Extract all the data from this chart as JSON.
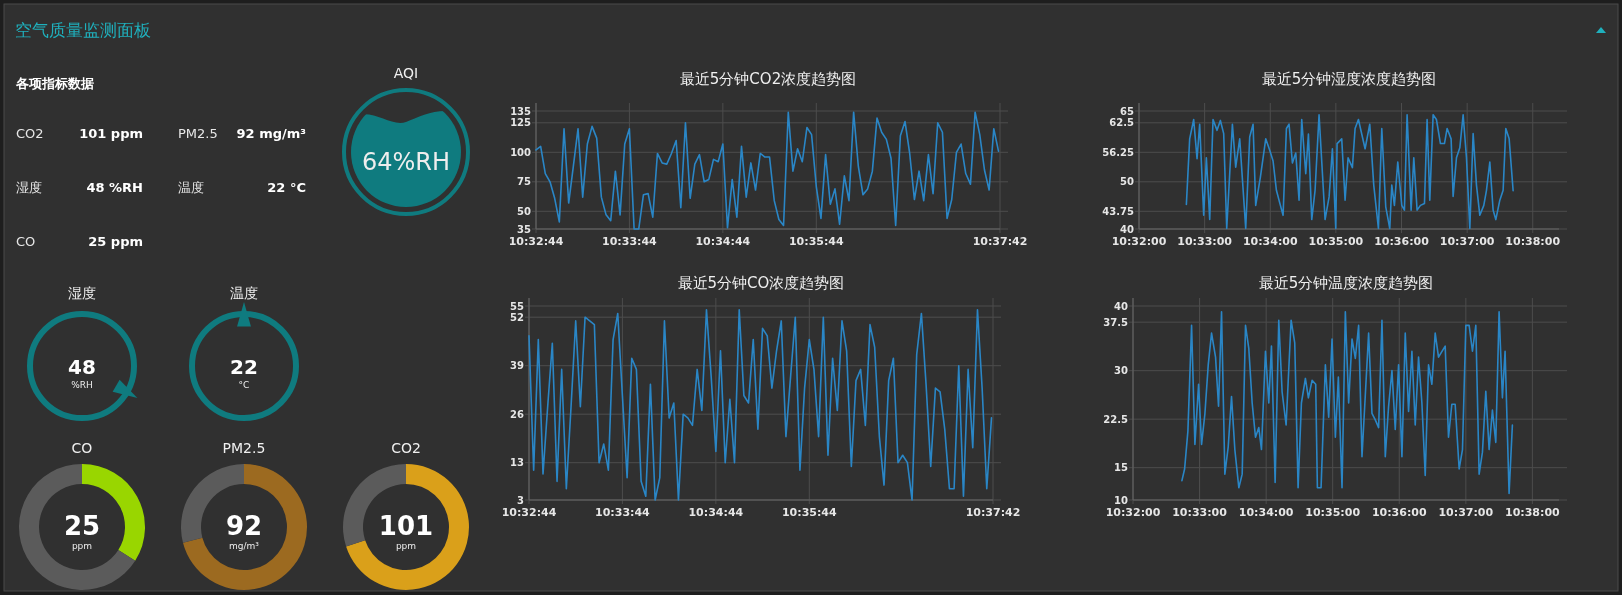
{
  "chart_data": [
    {
      "type": "other",
      "title": "空气质量监测面板",
      "subtitle": "各项指标数据",
      "annotations": [
        "CO2",
        "101 ppm",
        "PM2.5",
        "92 mg/m³",
        "湿度",
        "48 %RH",
        "温度",
        "22 °C",
        "CO",
        "25 ppm"
      ]
    },
    {
      "type": "other",
      "title": "AQI",
      "annotations": [
        "64%RH"
      ]
    },
    {
      "type": "line",
      "title": "最近5分钟CO2浓度趋势图",
      "color": "#2a86c6",
      "grid": true,
      "x": [
        10.54556,
        10.54639,
        10.54722,
        10.54806,
        10.54889,
        10.54972,
        10.55056,
        10.55139,
        10.55222,
        10.55306,
        10.55389,
        10.55472,
        10.55556,
        10.55639,
        10.55722,
        10.55806,
        10.55889,
        10.55972,
        10.56056,
        10.56139,
        10.56222,
        10.56306,
        10.56389,
        10.56472,
        10.56556,
        10.56639,
        10.56722,
        10.56806,
        10.56889,
        10.56972,
        10.57056,
        10.57139,
        10.57222,
        10.57306,
        10.57389,
        10.57472,
        10.57556,
        10.57639,
        10.57722,
        10.57806,
        10.57889,
        10.57972,
        10.58056,
        10.58139,
        10.58222,
        10.58306,
        10.58389,
        10.58472,
        10.58556,
        10.58639,
        10.58722,
        10.58806,
        10.58889,
        10.58972,
        10.59056,
        10.59139,
        10.59222,
        10.59306,
        10.59389,
        10.59472,
        10.59556,
        10.59639,
        10.59722,
        10.59806,
        10.59889,
        10.59972,
        10.60056,
        10.60139,
        10.60222,
        10.60306,
        10.60389,
        10.60472,
        10.60556,
        10.60639,
        10.60722,
        10.60806,
        10.60889,
        10.60972,
        10.61056,
        10.61139,
        10.61222,
        10.61306,
        10.61389,
        10.61472,
        10.61556,
        10.61639,
        10.61722,
        10.61806,
        10.61889,
        10.61972,
        10.62056,
        10.62139,
        10.62222,
        10.62306,
        10.62389,
        10.62472,
        10.62556,
        10.62639,
        10.62722,
        10.62806
      ],
      "values": [
        102,
        105,
        82,
        75,
        61,
        41,
        120,
        57,
        88,
        120,
        62,
        107,
        122,
        112,
        62,
        47,
        42,
        84,
        47,
        107,
        120,
        35,
        35,
        64,
        65,
        45,
        99,
        91,
        90,
        99,
        110,
        53,
        125,
        61,
        90,
        98,
        75,
        77,
        94,
        92,
        107,
        36,
        77,
        45,
        105,
        62,
        91,
        68,
        99,
        96,
        96,
        59,
        43,
        38,
        134,
        84,
        103,
        92,
        121,
        115,
        71,
        44,
        98,
        56,
        69,
        39,
        80,
        59,
        134,
        88,
        64,
        69,
        84,
        129,
        117,
        111,
        95,
        38,
        114,
        126,
        99,
        60,
        84,
        59,
        98,
        65,
        125,
        117,
        44,
        60,
        100,
        107,
        82,
        73,
        134,
        115,
        85,
        68,
        120,
        101
      ],
      "xlim": [
        10.54556,
        10.62833
      ],
      "xticks": [
        {
          "value": 10.54556,
          "label": "10:32:44"
        },
        {
          "value": 10.56222,
          "label": "10:33:44"
        },
        {
          "value": 10.57889,
          "label": "10:34:44"
        },
        {
          "value": 10.59556,
          "label": "10:35:44"
        },
        {
          "value": 10.62833,
          "label": "10:37:42"
        }
      ],
      "ylim": [
        35,
        135
      ],
      "yticks": [
        35,
        50,
        75,
        100,
        125,
        135
      ]
    },
    {
      "type": "line",
      "title": "最近5分钟湿度浓度趋势图",
      "color": "#2a86c6",
      "grid": true,
      "x": [
        10.54536,
        10.5462,
        10.54722,
        10.54807,
        10.54874,
        10.54976,
        10.55044,
        10.55129,
        10.55213,
        10.55315,
        10.554,
        10.55484,
        10.55561,
        10.55705,
        10.55789,
        10.55891,
        10.56043,
        10.56145,
        10.5623,
        10.56297,
        10.56416,
        10.56552,
        10.56653,
        10.56738,
        10.56823,
        10.56924,
        10.56992,
        10.57077,
        10.57144,
        10.57229,
        10.57314,
        10.57398,
        10.57466,
        10.57568,
        10.57636,
        10.5772,
        10.57805,
        10.57906,
        10.58059,
        10.58161,
        10.58245,
        10.5833,
        10.58364,
        10.58482,
        10.58567,
        10.58643,
        10.58753,
        10.58821,
        10.58906,
        10.59075,
        10.59194,
        10.59295,
        10.59414,
        10.59499,
        10.596,
        10.59702,
        10.59753,
        10.5982,
        10.59905,
        10.60007,
        10.60074,
        10.60142,
        10.60244,
        10.60312,
        10.60396,
        10.60481,
        10.60583,
        10.6065,
        10.60718,
        10.60803,
        10.60887,
        10.60989,
        10.61091,
        10.61159,
        10.6126,
        10.61311,
        10.61396,
        10.61481,
        10.61565,
        10.6165,
        10.61735,
        10.61819,
        10.61904,
        10.61989,
        10.6209,
        10.62158,
        10.62243,
        10.62327,
        10.62395,
        10.62497,
        10.62581,
        10.62649,
        10.62734,
        10.62835
      ],
      "values": [
        45.2,
        59.1,
        63.2,
        54.9,
        62.2,
        42.9,
        55.1,
        42.0,
        63.2,
        60.9,
        63.0,
        60.2,
        40.1,
        62.2,
        53.1,
        59.1,
        40.1,
        59.5,
        62.2,
        45.0,
        51.0,
        59.1,
        56.7,
        54.4,
        48.2,
        45.0,
        42.9,
        61.3,
        62.2,
        54.0,
        56.1,
        46.1,
        63.2,
        51.7,
        60.1,
        42.0,
        48.2,
        64.2,
        42.0,
        46.8,
        57.0,
        40.1,
        58.1,
        59.1,
        46.1,
        55.1,
        53.0,
        61.3,
        63.2,
        57.0,
        62.2,
        49.3,
        40.1,
        61.3,
        44.7,
        40.1,
        49.3,
        45.0,
        54.2,
        45.0,
        44.0,
        64.2,
        44.0,
        55.1,
        44.0,
        45.0,
        45.4,
        63.2,
        46.1,
        64.2,
        63.2,
        58.1,
        58.1,
        61.3,
        59.1,
        46.9,
        55.1,
        57.2,
        64.2,
        55.1,
        40.1,
        60.2,
        49.3,
        42.9,
        45.0,
        48.2,
        54.2,
        44.0,
        42.0,
        46.1,
        48.2,
        61.3,
        59.1,
        48.1
      ],
      "xlim": [
        10.53333,
        10.64
      ],
      "xticks": [
        {
          "value": 10.53333,
          "label": "10:32:00"
        },
        {
          "value": 10.55,
          "label": "10:33:00"
        },
        {
          "value": 10.56667,
          "label": "10:34:00"
        },
        {
          "value": 10.58333,
          "label": "10:35:00"
        },
        {
          "value": 10.6,
          "label": "10:36:00"
        },
        {
          "value": 10.61667,
          "label": "10:37:00"
        },
        {
          "value": 10.63333,
          "label": "10:38:00"
        }
      ],
      "ylim": [
        40,
        65
      ],
      "yticks": [
        40,
        43.75,
        50,
        56.25,
        62.5,
        65
      ]
    },
    {
      "type": "other",
      "title": "湿度",
      "annotations": [
        "48",
        "%RH"
      ]
    },
    {
      "type": "other",
      "title": "温度",
      "annotations": [
        "22",
        "°C"
      ]
    },
    {
      "type": "line",
      "title": "最近5分钟CO浓度趋势图",
      "color": "#2a86c6",
      "grid": true,
      "x": [
        10.54556,
        10.54639,
        10.54722,
        10.54806,
        10.54889,
        10.54972,
        10.55056,
        10.55139,
        10.55222,
        10.55306,
        10.55389,
        10.55472,
        10.55556,
        10.55639,
        10.55722,
        10.55806,
        10.55889,
        10.55972,
        10.56056,
        10.56139,
        10.56222,
        10.56306,
        10.56389,
        10.56472,
        10.56556,
        10.56639,
        10.56722,
        10.56806,
        10.56889,
        10.56972,
        10.57056,
        10.57139,
        10.57222,
        10.57306,
        10.57389,
        10.57472,
        10.57556,
        10.57639,
        10.57722,
        10.57806,
        10.57889,
        10.57972,
        10.58056,
        10.58139,
        10.58222,
        10.58306,
        10.58389,
        10.58472,
        10.58556,
        10.58639,
        10.58722,
        10.58806,
        10.58889,
        10.58972,
        10.59056,
        10.59139,
        10.59222,
        10.59306,
        10.59389,
        10.59472,
        10.59556,
        10.59639,
        10.59722,
        10.59806,
        10.59889,
        10.59972,
        10.60056,
        10.60139,
        10.60222,
        10.60306,
        10.60389,
        10.60472,
        10.60556,
        10.60639,
        10.60722,
        10.60806,
        10.60889,
        10.60972,
        10.61056,
        10.61139,
        10.61222,
        10.61306,
        10.61389,
        10.61472,
        10.61556,
        10.61639,
        10.61722,
        10.61806,
        10.61889,
        10.61972,
        10.62056,
        10.62139,
        10.62222,
        10.62306,
        10.62389,
        10.62472,
        10.62556,
        10.62639,
        10.62722,
        10.62806
      ],
      "values": [
        47,
        11,
        46,
        10,
        28,
        45,
        8,
        38,
        6,
        28,
        51,
        28,
        52,
        51,
        50,
        13,
        18,
        11,
        46,
        53,
        31,
        9,
        41,
        38,
        8,
        4,
        34,
        3,
        9,
        51,
        25,
        29,
        3,
        26,
        25,
        23,
        38,
        27,
        54,
        36,
        16,
        43,
        13,
        30,
        13,
        54,
        31,
        29,
        46,
        22,
        49,
        47,
        33,
        43,
        51,
        20,
        36,
        52,
        11,
        33,
        46,
        38,
        20,
        52,
        15,
        41,
        27,
        51,
        43,
        12,
        35,
        38,
        23,
        50,
        44,
        20,
        7,
        35,
        41,
        13,
        15,
        13,
        3,
        42,
        53,
        34,
        12,
        33,
        32,
        22,
        6,
        6,
        39,
        4,
        38,
        17,
        54,
        33,
        6,
        25
      ],
      "xlim": [
        10.54556,
        10.62833
      ],
      "xticks": [
        {
          "value": 10.54556,
          "label": "10:32:44"
        },
        {
          "value": 10.56222,
          "label": "10:33:44"
        },
        {
          "value": 10.57889,
          "label": "10:34:44"
        },
        {
          "value": 10.59556,
          "label": "10:35:44"
        },
        {
          "value": 10.62833,
          "label": "10:37:42"
        }
      ],
      "ylim": [
        3,
        55
      ],
      "yticks": [
        3,
        13,
        26,
        39,
        52,
        55
      ]
    },
    {
      "type": "line",
      "title": "最近5分钟温度浓度趋势图",
      "color": "#2a86c6",
      "grid": true,
      "x": [
        10.54558,
        10.54625,
        10.54708,
        10.548,
        10.54883,
        10.54975,
        10.5505,
        10.55133,
        10.55217,
        10.553,
        10.554,
        10.55475,
        10.5555,
        10.55633,
        10.55717,
        10.558,
        10.55883,
        10.55983,
        10.56067,
        10.5615,
        10.56233,
        10.56317,
        10.564,
        10.56483,
        10.5655,
        10.5665,
        10.56733,
        10.568,
        10.56892,
        10.56983,
        10.57067,
        10.57167,
        10.57292,
        10.57383,
        10.57467,
        10.5755,
        10.5765,
        10.57725,
        10.57817,
        10.57908,
        10.5795,
        10.58042,
        10.5815,
        10.58233,
        10.58317,
        10.584,
        10.58475,
        10.58567,
        10.5865,
        10.58733,
        10.58817,
        10.589,
        10.58983,
        10.59067,
        10.5915,
        10.59233,
        10.59317,
        10.594,
        10.59483,
        10.59567,
        10.5965,
        10.59733,
        10.59817,
        10.599,
        10.59983,
        10.60067,
        10.6015,
        10.60233,
        10.60317,
        10.604,
        10.60483,
        10.60567,
        10.6065,
        10.60733,
        10.60817,
        10.609,
        10.60983,
        10.6115,
        10.61233,
        10.61317,
        10.614,
        10.615,
        10.61583,
        10.61667,
        10.6175,
        10.61833,
        10.61917,
        10.62,
        10.62083,
        10.62167,
        10.6225,
        10.62333,
        10.62417,
        10.625,
        10.62583,
        10.6265,
        10.6275,
        10.62833
      ],
      "values": [
        13.0,
        14.8,
        20.7,
        37.0,
        18.6,
        27.9,
        18.6,
        23.3,
        30.9,
        35.8,
        32.1,
        24.5,
        39.1,
        14.0,
        18.2,
        26.0,
        17.8,
        11.9,
        14.0,
        37.0,
        33.4,
        25.0,
        19.7,
        21.2,
        17.8,
        33.0,
        25.0,
        33.8,
        12.7,
        37.8,
        26.7,
        21.6,
        37.8,
        34.3,
        11.9,
        25.0,
        28.8,
        25.8,
        28.5,
        27.9,
        11.9,
        11.9,
        30.9,
        22.8,
        34.9,
        19.7,
        29.0,
        11.9,
        39.1,
        25.0,
        34.9,
        31.9,
        37.0,
        16.7,
        26.2,
        35.8,
        23.4,
        22.4,
        21.2,
        37.8,
        16.7,
        24.5,
        30.0,
        20.9,
        30.9,
        16.7,
        35.8,
        23.7,
        33.0,
        21.6,
        32.1,
        25.0,
        13.8,
        30.9,
        27.9,
        35.8,
        32.1,
        33.8,
        19.7,
        24.8,
        24.8,
        14.8,
        17.8,
        37.0,
        37.0,
        33.0,
        37.0,
        14.0,
        17.4,
        26.8,
        17.8,
        23.9,
        18.9,
        39.1,
        25.8,
        33.0,
        11.0,
        21.6
      ],
      "xlim": [
        10.53333,
        10.64
      ],
      "xticks": [
        {
          "value": 10.53333,
          "label": "10:32:00"
        },
        {
          "value": 10.55,
          "label": "10:33:00"
        },
        {
          "value": 10.56667,
          "label": "10:34:00"
        },
        {
          "value": 10.58333,
          "label": "10:35:00"
        },
        {
          "value": 10.6,
          "label": "10:36:00"
        },
        {
          "value": 10.61667,
          "label": "10:37:00"
        },
        {
          "value": 10.63333,
          "label": "10:38:00"
        }
      ],
      "ylim": [
        10,
        40
      ],
      "yticks": [
        10,
        15,
        22.5,
        30,
        37.5,
        40
      ]
    },
    {
      "type": "donut",
      "title": "CO",
      "categories": [
        null,
        null
      ],
      "values": [
        34,
        66
      ],
      "colors": [
        "#99d600",
        "#5b5b5b"
      ],
      "annotations": [
        "25",
        "ppm"
      ]
    },
    {
      "type": "donut",
      "title": "PM2.5",
      "categories": [
        null,
        null
      ],
      "values": [
        71,
        29
      ],
      "colors": [
        "#9c6a20",
        "#5b5b5b"
      ],
      "annotations": [
        "92",
        "mg/m³"
      ]
    },
    {
      "type": "donut",
      "title": "CO2",
      "categories": [
        null,
        null
      ],
      "values": [
        70,
        30
      ],
      "colors": [
        "#daa01a",
        "#5b5b5b"
      ],
      "annotations": [
        "101",
        "ppm"
      ]
    }
  ]
}
